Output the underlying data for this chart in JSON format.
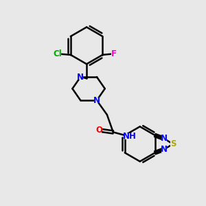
{
  "bg_color": "#e8e8e8",
  "bond_color": "#000000",
  "bond_width": 1.8,
  "atom_colors": {
    "N": "#0000ff",
    "O": "#ff0000",
    "S": "#aaaa00",
    "Cl": "#00aa00",
    "F": "#ff00cc",
    "H": "#666666",
    "C": "#000000"
  },
  "font_size": 8.5,
  "figsize": [
    3.0,
    3.0
  ],
  "dpi": 100,
  "xlim": [
    0,
    10
  ],
  "ylim": [
    0,
    10
  ]
}
